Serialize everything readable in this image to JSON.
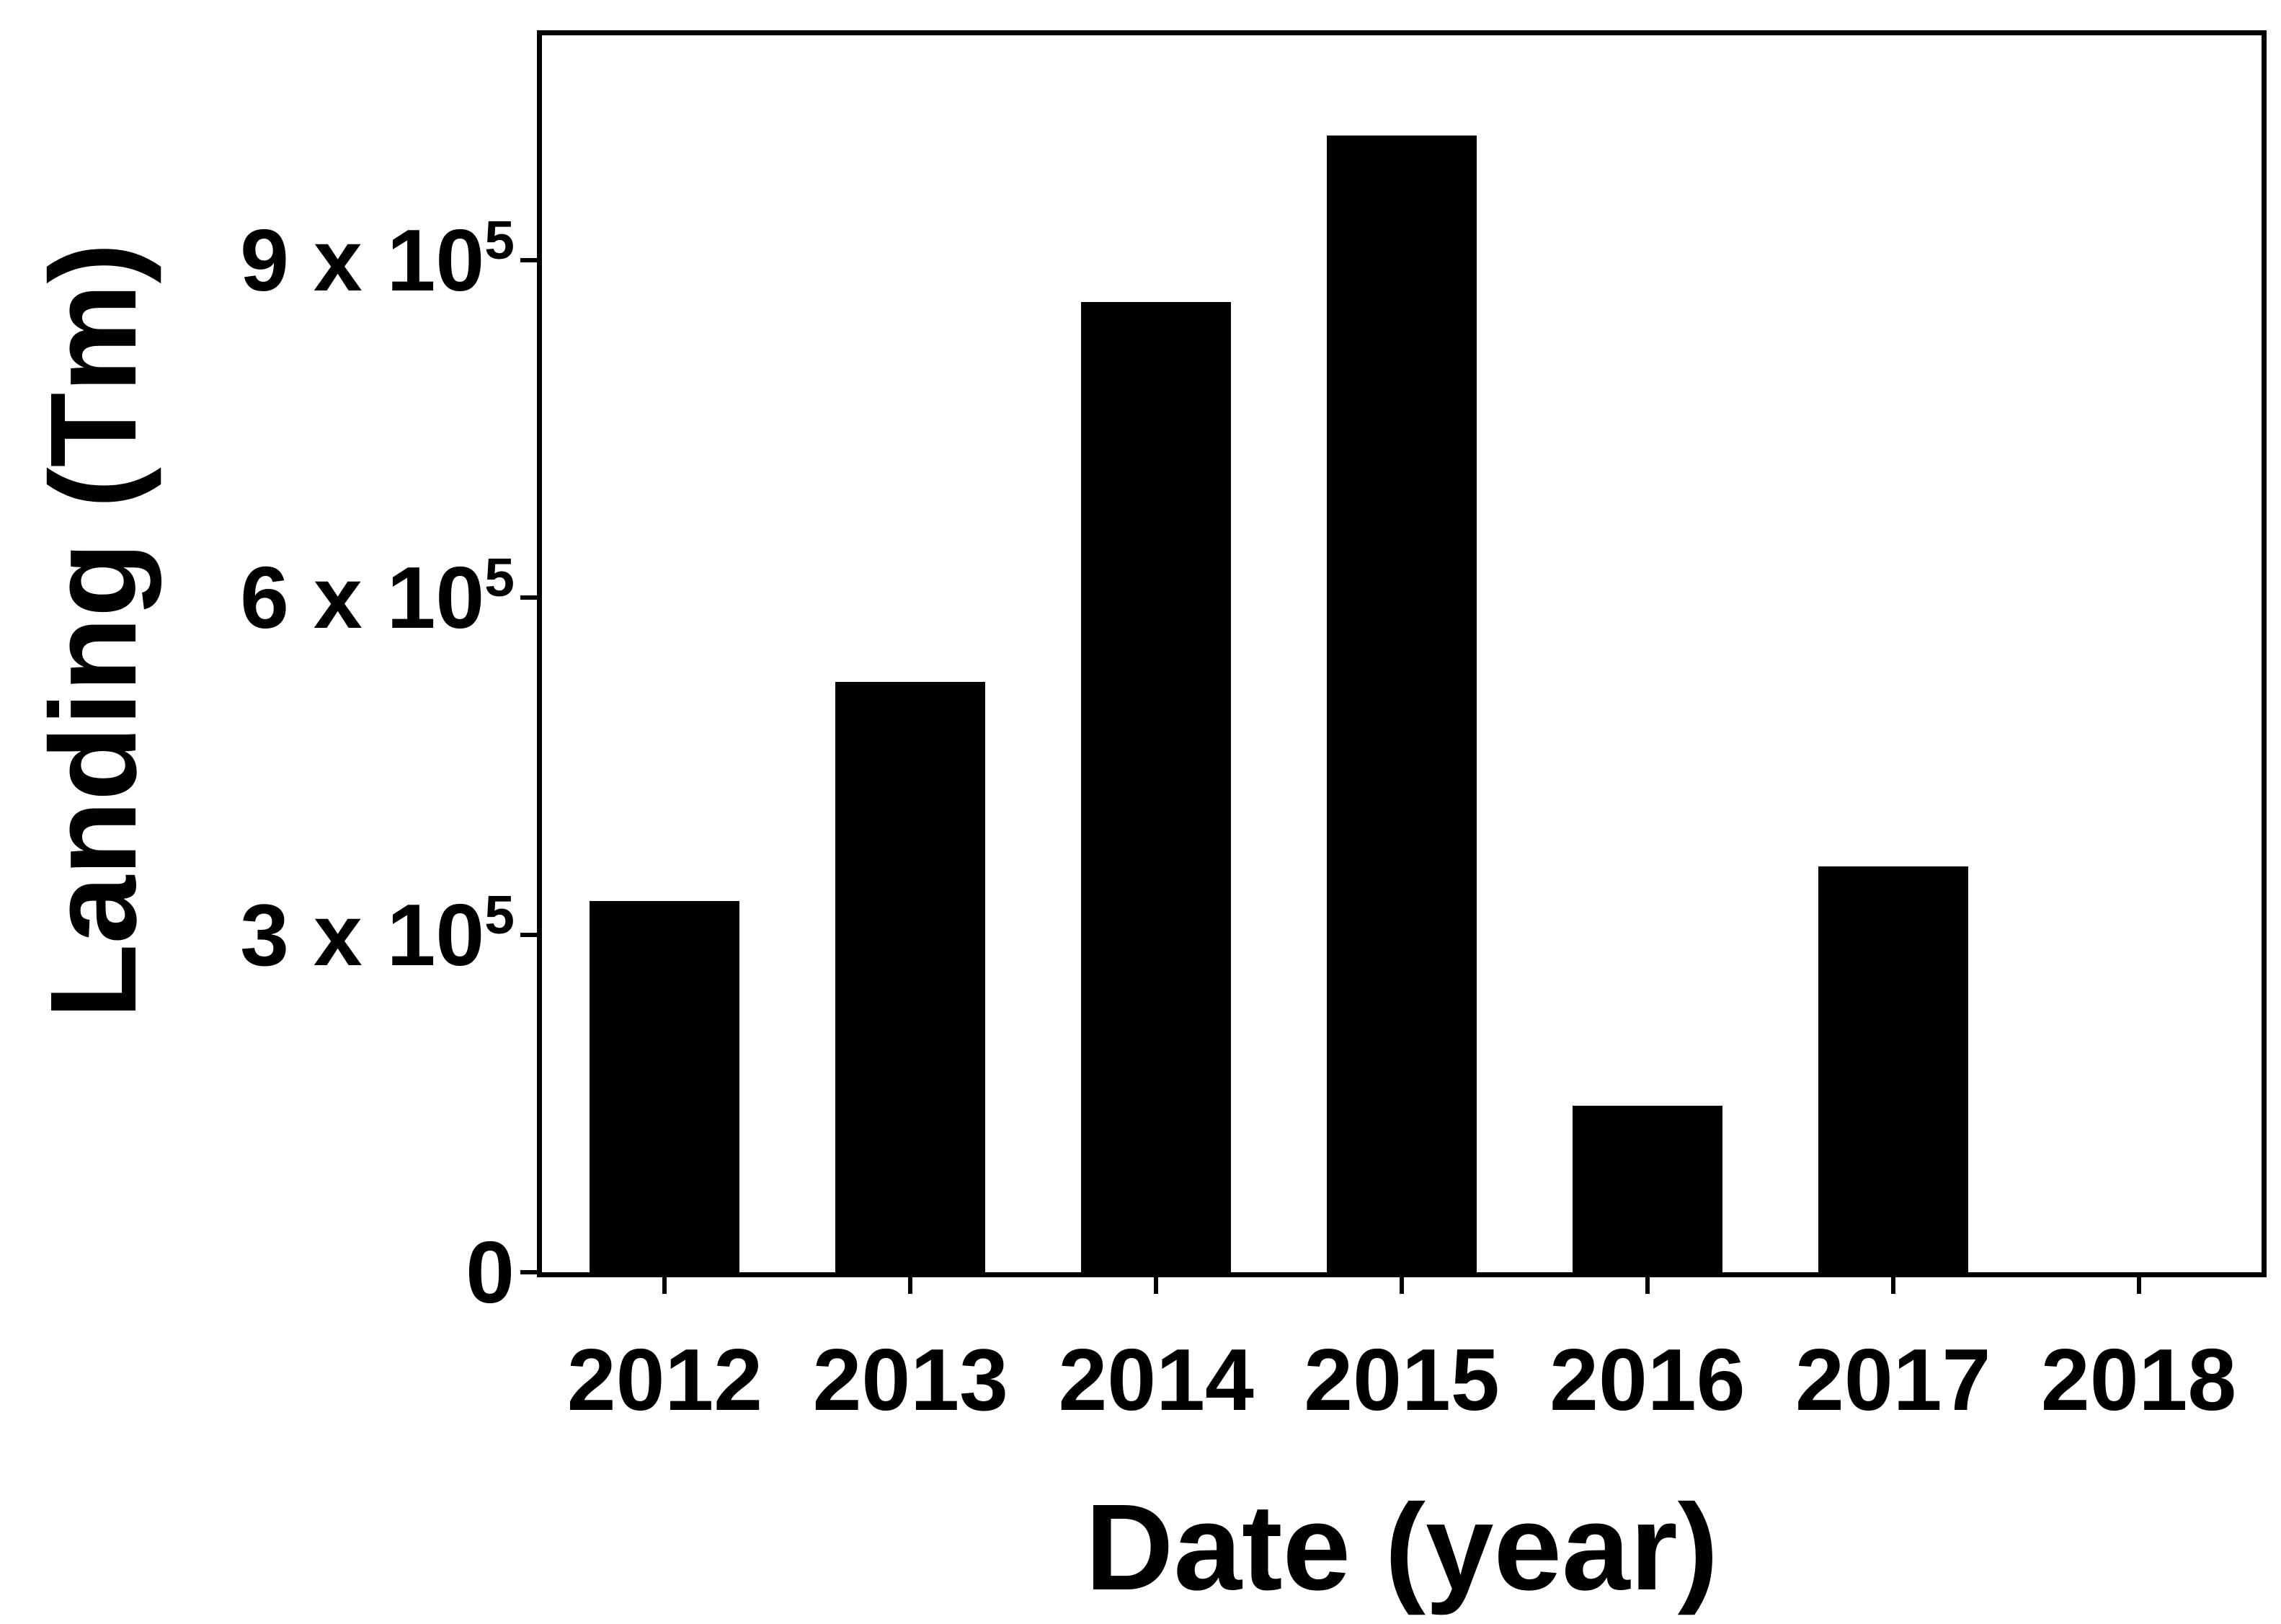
{
  "figure": {
    "background": "#ffffff",
    "foreground": "#000000"
  },
  "chart_data": {
    "type": "bar",
    "title": "",
    "xlabel": "Date (year)",
    "ylabel": "Landing (Tm)",
    "categories": [
      "2012",
      "2013",
      "2014",
      "2015",
      "2016",
      "2017",
      "2018"
    ],
    "values": [
      330000,
      525000,
      863000,
      1011000,
      148000,
      361000,
      0
    ],
    "bar_color": "#000000",
    "bar_width_fraction": 0.61,
    "ylim": [
      0,
      1100000
    ],
    "yticks": [
      {
        "value": 0,
        "base": "0",
        "exp": ""
      },
      {
        "value": 300000,
        "base": "3 x 10",
        "exp": "5"
      },
      {
        "value": 600000,
        "base": "6 x 10",
        "exp": "5"
      },
      {
        "value": 900000,
        "base": "9 x 10",
        "exp": "5"
      }
    ],
    "grid": false,
    "legend": null
  }
}
